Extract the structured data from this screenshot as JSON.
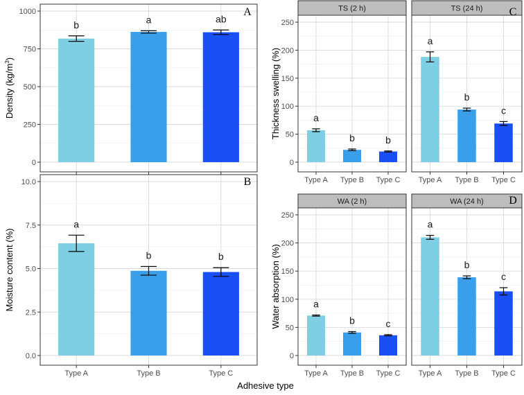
{
  "figure": {
    "xlabel": "Adhesive type"
  },
  "colors": [
    "#7ecfe3",
    "#3a9fea",
    "#1a4ff5"
  ],
  "chart_data": [
    {
      "id": "A",
      "type": "bar",
      "letter": "A",
      "ylabel": "Density (kg/m",
      "ylabel_sup": "3",
      "ylabel_end": ")",
      "ylim": [
        0,
        1000
      ],
      "yticks": [
        0,
        250,
        500,
        750,
        1000
      ],
      "ytick_labels": [
        "0",
        "250",
        "500",
        "750",
        "1000"
      ],
      "categories": [
        "Type A",
        "Type B",
        "Type C"
      ],
      "values": [
        818,
        862,
        860
      ],
      "errors": [
        18,
        8,
        15
      ],
      "letters": [
        "b",
        "a",
        "ab"
      ]
    },
    {
      "id": "B",
      "type": "bar",
      "letter": "B",
      "ylabel": "Moisture content (%)",
      "ylim": [
        0,
        10
      ],
      "yticks": [
        0,
        2.5,
        5,
        7.5,
        10
      ],
      "ytick_labels": [
        "0.0",
        "2.5",
        "5.0",
        "7.5",
        "10.0"
      ],
      "categories": [
        "Type A",
        "Type B",
        "Type C"
      ],
      "values": [
        6.45,
        4.87,
        4.8
      ],
      "errors": [
        0.47,
        0.25,
        0.25
      ],
      "letters": [
        "a",
        "b",
        "b"
      ]
    },
    {
      "id": "C",
      "type": "bar",
      "letter": "C",
      "ylabel": "Thickness swelling (%)",
      "ylim": [
        0,
        250
      ],
      "yticks": [
        0,
        50,
        100,
        150,
        200,
        250
      ],
      "ytick_labels": [
        "0",
        "50",
        "100",
        "150",
        "200",
        "250"
      ],
      "categories": [
        "Type A",
        "Type B",
        "Type C"
      ],
      "facets": [
        {
          "strip": "TS (2 h)",
          "values": [
            57,
            22,
            19
          ],
          "errors": [
            2.5,
            1.5,
            1
          ],
          "letters": [
            "a",
            "b",
            "b"
          ]
        },
        {
          "strip": "TS (24 h)",
          "values": [
            188,
            94,
            69
          ],
          "errors": [
            9,
            2.5,
            3.5
          ],
          "letters": [
            "a",
            "b",
            "c"
          ]
        }
      ]
    },
    {
      "id": "D",
      "type": "bar",
      "letter": "D",
      "ylabel": "Water absorption (%)",
      "ylim": [
        0,
        250
      ],
      "yticks": [
        0,
        50,
        100,
        150,
        200,
        250
      ],
      "ytick_labels": [
        "0",
        "50",
        "100",
        "150",
        "200",
        "250"
      ],
      "categories": [
        "Type A",
        "Type B",
        "Type C"
      ],
      "facets": [
        {
          "strip": "WA (2 h)",
          "values": [
            71,
            41,
            36
          ],
          "errors": [
            1,
            1.5,
            1
          ],
          "letters": [
            "a",
            "b",
            "c"
          ]
        },
        {
          "strip": "WA (24 h)",
          "values": [
            210,
            139,
            114
          ],
          "errors": [
            3.5,
            2.5,
            6.5
          ],
          "letters": [
            "a",
            "b",
            "c"
          ]
        }
      ]
    }
  ]
}
